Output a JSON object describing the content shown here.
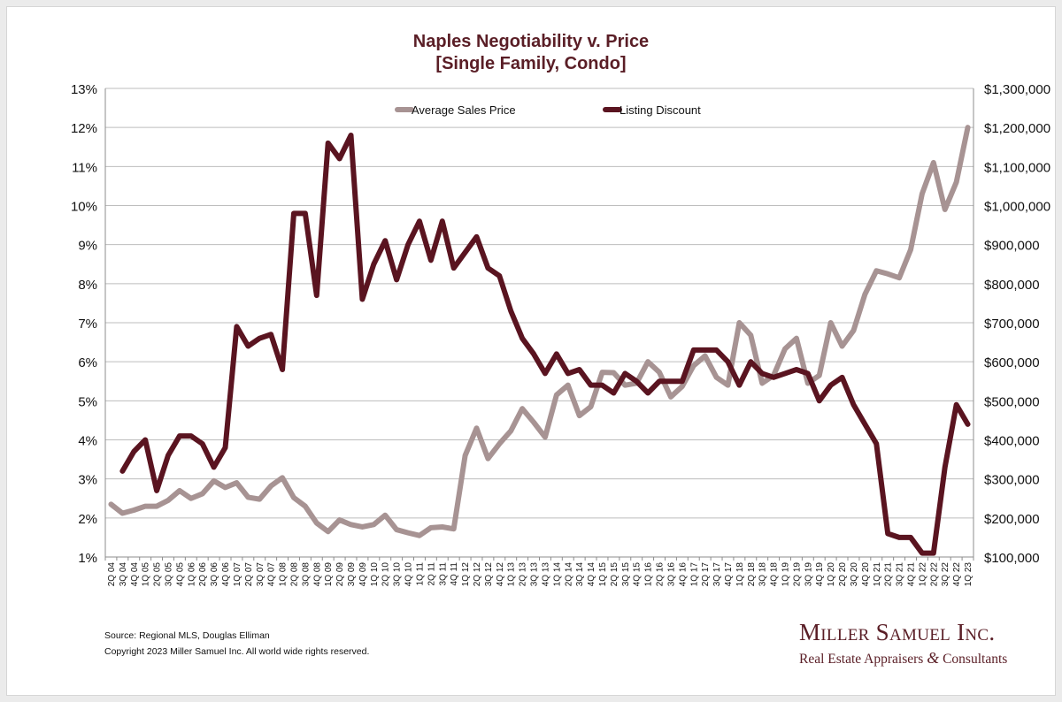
{
  "colors": {
    "price": "#a79393",
    "discount": "#5a1420",
    "title": "#5a1e26",
    "grid": "#bdbdbd"
  },
  "chart_data": {
    "type": "line",
    "title": "Naples Negotiability v. Price",
    "subtitle": "[Single Family, Condo]",
    "legend": {
      "placement": "top-center",
      "entries": [
        "Average Sales Price",
        "Listing Discount"
      ]
    },
    "grid": true,
    "y_left": {
      "range": [
        1,
        13
      ],
      "ticks": [
        "1%",
        "2%",
        "3%",
        "4%",
        "5%",
        "6%",
        "7%",
        "8%",
        "9%",
        "10%",
        "11%",
        "12%",
        "13%"
      ]
    },
    "y_right": {
      "range": [
        100000,
        1300000
      ],
      "ticks": [
        "$100,000",
        "$200,000",
        "$300,000",
        "$400,000",
        "$500,000",
        "$600,000",
        "$700,000",
        "$800,000",
        "$900,000",
        "$1,000,000",
        "$1,100,000",
        "$1,200,000",
        "$1,300,000"
      ]
    },
    "x": [
      "2Q 04",
      "3Q 04",
      "4Q 04",
      "1Q 05",
      "2Q 05",
      "3Q 05",
      "4Q 05",
      "1Q 06",
      "2Q 06",
      "3Q 06",
      "4Q 06",
      "1Q 07",
      "2Q 07",
      "3Q 07",
      "4Q 07",
      "1Q 08",
      "2Q 08",
      "3Q 08",
      "4Q 08",
      "1Q 09",
      "2Q 09",
      "3Q 09",
      "4Q 09",
      "1Q 10",
      "2Q 10",
      "3Q 10",
      "4Q 10",
      "1Q 11",
      "2Q 11",
      "3Q 11",
      "4Q 11",
      "1Q 12",
      "2Q 12",
      "3Q 12",
      "4Q 12",
      "1Q 13",
      "2Q 13",
      "3Q 13",
      "4Q 13",
      "1Q 14",
      "2Q 14",
      "3Q 14",
      "4Q 14",
      "1Q 15",
      "2Q 15",
      "3Q 15",
      "4Q 15",
      "1Q 16",
      "2Q 16",
      "3Q 16",
      "4Q 16",
      "1Q 17",
      "2Q 17",
      "3Q 17",
      "4Q 17",
      "1Q 18",
      "2Q 18",
      "3Q 18",
      "4Q 18",
      "1Q 19",
      "2Q 19",
      "3Q 19",
      "4Q 19",
      "1Q 20",
      "2Q 20",
      "3Q 20",
      "4Q 20",
      "1Q 21",
      "2Q 21",
      "3Q 21",
      "4Q 21",
      "1Q 22",
      "2Q 22",
      "3Q 22",
      "4Q 22",
      "1Q 23"
    ],
    "x_tick_labels": [
      "2Q 04",
      "3Q 04",
      "4Q 04",
      "1Q 05",
      "2Q 05",
      "3Q 05",
      "4Q 05",
      "1Q 06",
      "2Q 06",
      "3Q 06",
      "4Q 06",
      "1Q 07",
      "2Q 07",
      "3Q 07",
      "4Q 07",
      "1Q 08",
      "2Q 08",
      "3Q 08",
      "4Q 08",
      "1Q 09",
      "2Q 09",
      "3Q 09",
      "4Q 09",
      "1Q 10",
      "2Q 10",
      "3Q 10",
      "4Q 10",
      "1Q 11",
      "2Q 11",
      "3Q 11",
      "4Q 11",
      "1Q 12",
      "2Q 12",
      "3Q 12",
      "4Q 12",
      "1Q 13",
      "2Q 13",
      "3Q 13",
      "4Q 13",
      "1Q 14",
      "2Q 14",
      "3Q 14",
      "4Q 14",
      "1Q 15",
      "2Q 15",
      "3Q 15",
      "4Q 15",
      "1Q 16",
      "2Q 16",
      "3Q 16",
      "4Q 16",
      "1Q 17",
      "2Q 17",
      "3Q 17",
      "4Q 17",
      "1Q 18",
      "2Q 18",
      "3Q 18",
      "4Q 18",
      "1Q 19",
      "2Q 19",
      "3Q 19",
      "4Q 19",
      "1Q 20",
      "2Q 20",
      "3Q 20",
      "4Q 20",
      "1Q 21",
      "2Q 21",
      "3Q 21",
      "4Q 21",
      "1Q 22",
      "2Q 22",
      "3Q 22",
      "4Q 22",
      "1Q 23"
    ],
    "series": [
      {
        "name": "Average Sales Price",
        "axis": "right",
        "values": [
          235000,
          212000,
          220000,
          230000,
          230000,
          245000,
          270000,
          250000,
          262000,
          295000,
          278000,
          290000,
          253000,
          248000,
          282000,
          303000,
          252000,
          230000,
          187000,
          165000,
          195000,
          183000,
          177000,
          183000,
          207000,
          170000,
          162000,
          155000,
          175000,
          177000,
          172000,
          360000,
          430000,
          352000,
          390000,
          423000,
          480000,
          445000,
          407000,
          515000,
          540000,
          462000,
          485000,
          573000,
          572000,
          540000,
          545000,
          600000,
          573000,
          510000,
          537000,
          590000,
          615000,
          560000,
          540000,
          700000,
          668000,
          545000,
          565000,
          633000,
          660000,
          545000,
          565000,
          700000,
          640000,
          680000,
          773000,
          833000,
          825000,
          815000,
          887000,
          1030000,
          1110000,
          990000,
          1060000,
          1200000
        ]
      },
      {
        "name": "Listing Discount",
        "axis": "left",
        "values": [
          null,
          3.2,
          3.7,
          4.0,
          2.7,
          3.6,
          4.1,
          4.1,
          3.9,
          3.3,
          3.8,
          6.9,
          6.4,
          6.6,
          6.7,
          5.8,
          9.8,
          9.8,
          7.7,
          11.6,
          11.2,
          11.8,
          7.6,
          8.5,
          9.1,
          8.1,
          9.0,
          9.6,
          8.6,
          9.6,
          8.4,
          8.8,
          9.2,
          8.4,
          8.2,
          7.3,
          6.6,
          6.2,
          5.7,
          6.2,
          5.7,
          5.8,
          5.4,
          5.4,
          5.2,
          5.7,
          5.5,
          5.2,
          5.5,
          5.5,
          5.5,
          6.3,
          6.3,
          6.3,
          6.0,
          5.4,
          6.0,
          5.7,
          5.6,
          5.7,
          5.8,
          5.7,
          5.0,
          5.4,
          5.6,
          4.9,
          4.4,
          3.9,
          1.6,
          1.5,
          1.5,
          1.1,
          1.1,
          3.3,
          4.9,
          4.4
        ]
      }
    ]
  },
  "footer": {
    "source": "Source: Regional MLS, Douglas Elliman",
    "copyright": "Copyright 2023 Miller Samuel Inc.  All world wide rights reserved."
  },
  "brand": {
    "name": "Miller Samuel Inc.",
    "tagline_part1": "Real Estate Appraisers ",
    "tagline_amp": "&",
    "tagline_part2": " Consultants"
  }
}
